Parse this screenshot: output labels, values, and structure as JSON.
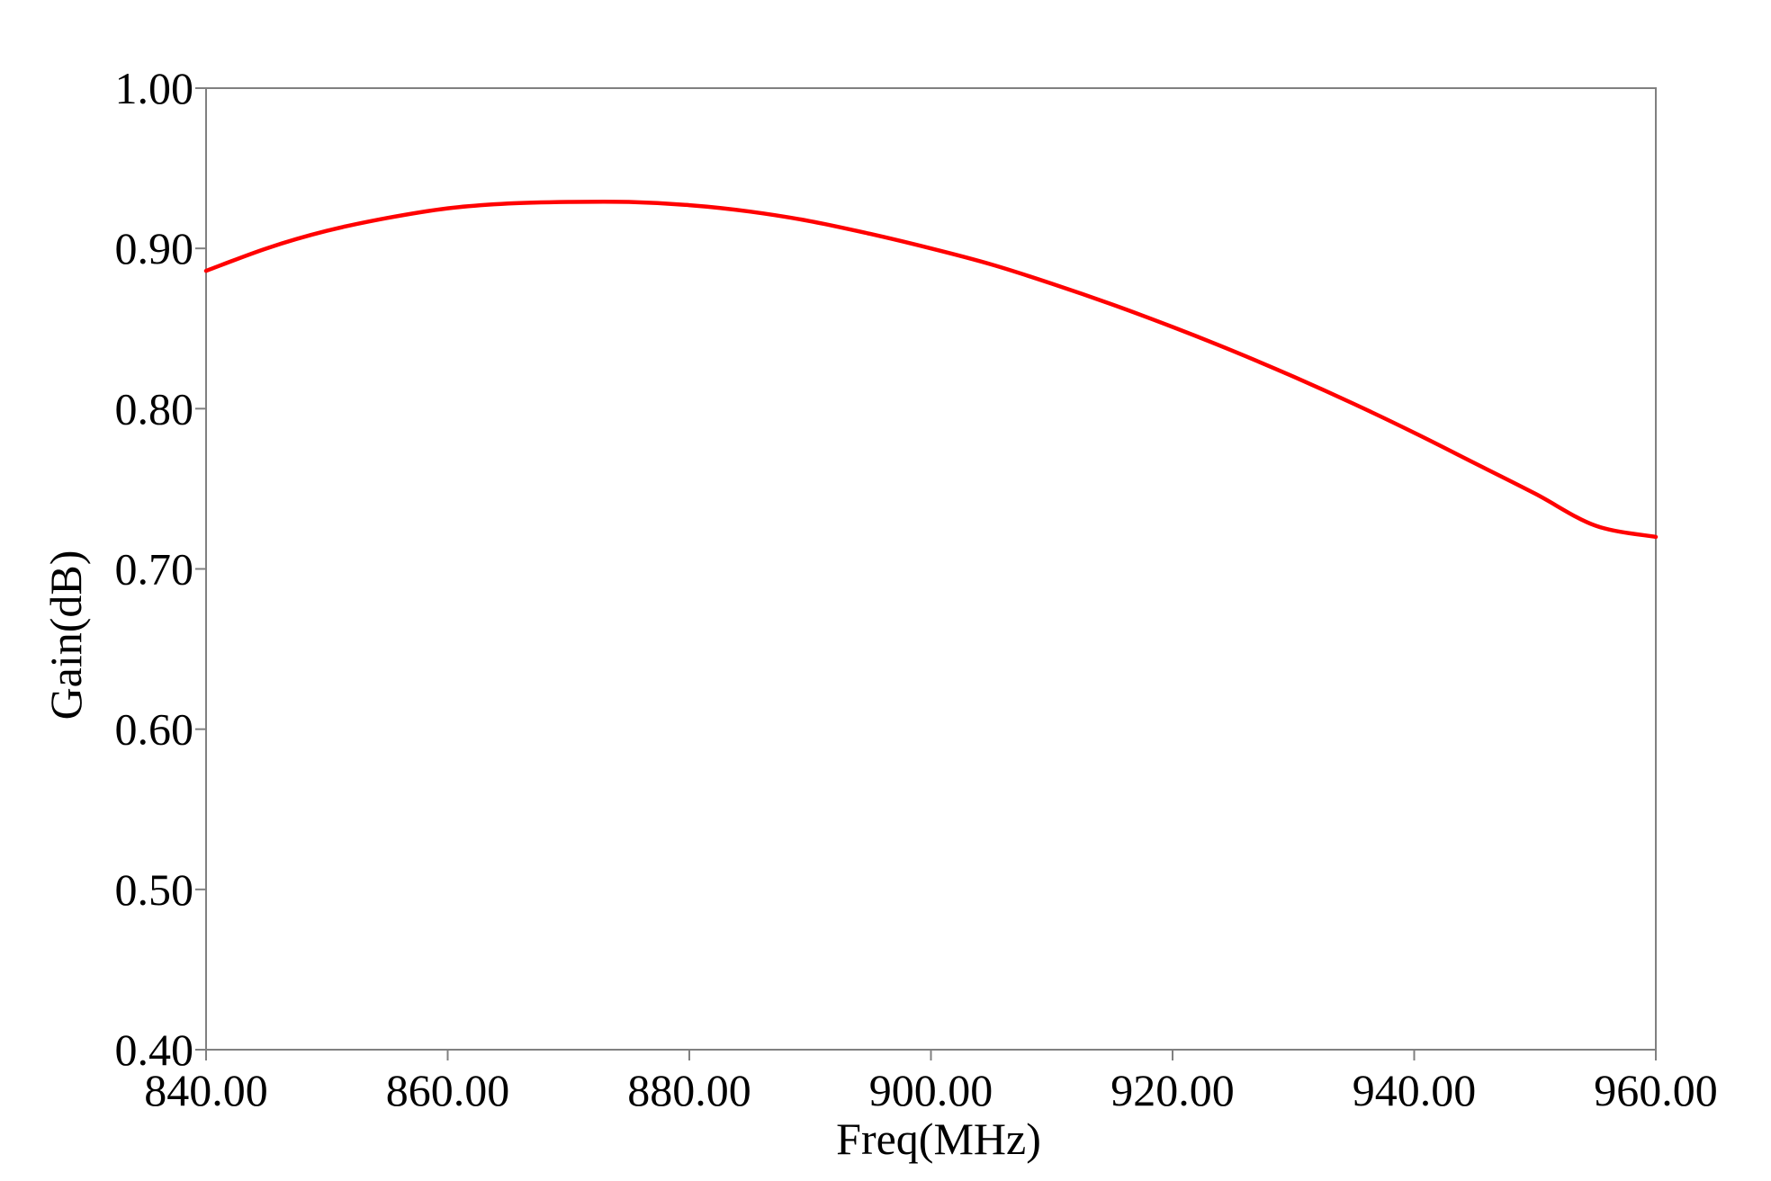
{
  "chart_data": {
    "type": "line",
    "title": "",
    "xlabel": "Freq(MHz)",
    "ylabel": "Gain(dB)",
    "xlim": [
      840,
      960
    ],
    "ylim": [
      0.4,
      1.0
    ],
    "xticks": [
      840,
      860,
      880,
      900,
      920,
      940,
      960
    ],
    "yticks": [
      0.4,
      0.5,
      0.6,
      0.7,
      0.8,
      0.9,
      1.0
    ],
    "xtick_labels": [
      "840.00",
      "860.00",
      "880.00",
      "900.00",
      "920.00",
      "940.00",
      "960.00"
    ],
    "ytick_labels": [
      "0.40",
      "0.50",
      "0.60",
      "0.70",
      "0.80",
      "0.90",
      "1.00"
    ],
    "grid": false,
    "series": [
      {
        "color": "#ff0000",
        "x": [
          840,
          845,
          850,
          855,
          860,
          865,
          870,
          875,
          880,
          885,
          890,
          895,
          900,
          905,
          910,
          915,
          920,
          925,
          930,
          935,
          940,
          945,
          950,
          955,
          960
        ],
        "y": [
          0.886,
          0.9,
          0.911,
          0.919,
          0.925,
          0.928,
          0.929,
          0.929,
          0.927,
          0.923,
          0.917,
          0.909,
          0.9,
          0.89,
          0.878,
          0.865,
          0.851,
          0.836,
          0.82,
          0.803,
          0.785,
          0.766,
          0.747,
          0.727,
          0.72
        ]
      }
    ]
  }
}
